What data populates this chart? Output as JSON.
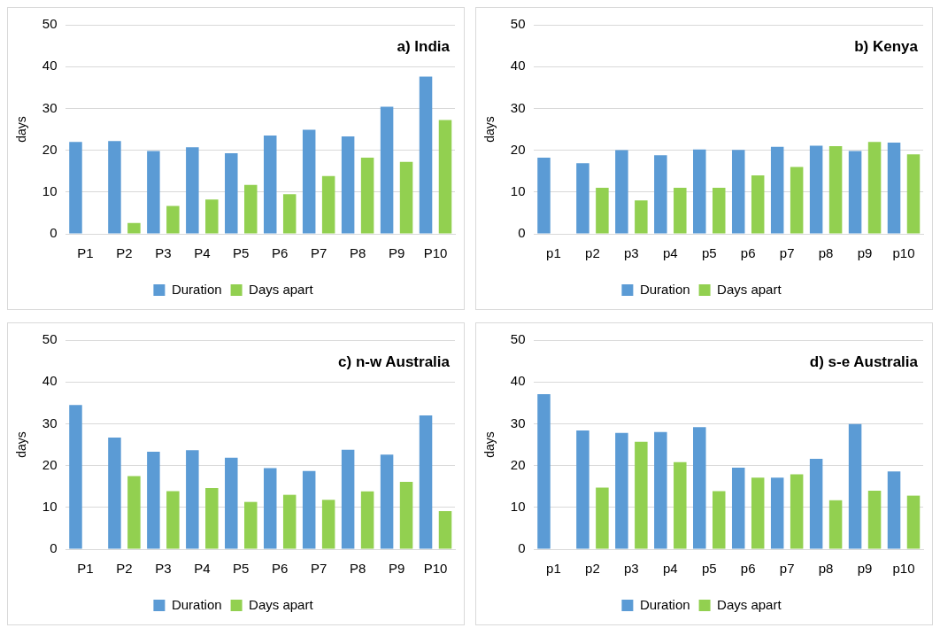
{
  "chart_data": [
    {
      "type": "bar",
      "title": "a) India",
      "ylabel": "days",
      "categories": [
        "P1",
        "P2",
        "P3",
        "P4",
        "P5",
        "P6",
        "P7",
        "P8",
        "P9",
        "P10"
      ],
      "series": [
        {
          "name": "Duration",
          "color": "#5b9bd5",
          "values": [
            22,
            22.2,
            19.8,
            20.7,
            19.3,
            23.5,
            24.9,
            23.3,
            30.4,
            37.6
          ]
        },
        {
          "name": "Days apart",
          "color": "#92d050",
          "values": [
            null,
            2.6,
            6.7,
            8.2,
            11.7,
            9.5,
            13.8,
            18.2,
            17.2,
            27.2
          ]
        }
      ],
      "ylim": [
        0,
        50
      ],
      "yticks": [
        0,
        10,
        20,
        30,
        40,
        50
      ],
      "grid": "y",
      "legend": "bottom"
    },
    {
      "type": "bar",
      "title": "b) Kenya",
      "ylabel": "days",
      "categories": [
        "p1",
        "p2",
        "p3",
        "p4",
        "p5",
        "p6",
        "p7",
        "p8",
        "p9",
        "p10"
      ],
      "series": [
        {
          "name": "Duration",
          "color": "#5b9bd5",
          "values": [
            18.2,
            16.9,
            20,
            18.8,
            20.2,
            20.1,
            20.8,
            21.1,
            19.8,
            21.8
          ]
        },
        {
          "name": "Days apart",
          "color": "#92d050",
          "values": [
            null,
            11,
            8,
            11,
            11,
            14,
            16,
            21,
            22,
            19
          ]
        }
      ],
      "ylim": [
        0,
        50
      ],
      "yticks": [
        0,
        10,
        20,
        30,
        40,
        50
      ],
      "grid": "y",
      "legend": "bottom"
    },
    {
      "type": "bar",
      "title": "c) n-w Australia",
      "ylabel": "days",
      "categories": [
        "P1",
        "P2",
        "P3",
        "P4",
        "P5",
        "P6",
        "P7",
        "P8",
        "P9",
        "P10"
      ],
      "series": [
        {
          "name": "Duration",
          "color": "#5b9bd5",
          "values": [
            34.5,
            26.7,
            23.3,
            23.7,
            21.9,
            19.4,
            18.7,
            23.8,
            22.6,
            32.0
          ]
        },
        {
          "name": "Days apart",
          "color": "#92d050",
          "values": [
            null,
            17.5,
            13.9,
            14.6,
            11.3,
            13.0,
            11.8,
            13.8,
            16.1,
            9.1
          ]
        }
      ],
      "ylim": [
        0,
        50
      ],
      "yticks": [
        0,
        10,
        20,
        30,
        40,
        50
      ],
      "grid": "y",
      "legend": "bottom"
    },
    {
      "type": "bar",
      "title": "d) s-e Australia",
      "ylabel": "days",
      "categories": [
        "p1",
        "p2",
        "p3",
        "p4",
        "p5",
        "p6",
        "p7",
        "p8",
        "p9",
        "p10"
      ],
      "series": [
        {
          "name": "Duration",
          "color": "#5b9bd5",
          "values": [
            37.1,
            28.4,
            27.8,
            28.0,
            29.2,
            19.5,
            17.1,
            21.6,
            29.9,
            18.6
          ]
        },
        {
          "name": "Days apart",
          "color": "#92d050",
          "values": [
            null,
            14.7,
            25.7,
            20.8,
            13.9,
            17.1,
            17.9,
            11.7,
            14.0,
            12.8
          ]
        }
      ],
      "ylim": [
        0,
        50
      ],
      "yticks": [
        0,
        10,
        20,
        30,
        40,
        50
      ],
      "grid": "y",
      "legend": "bottom"
    }
  ]
}
